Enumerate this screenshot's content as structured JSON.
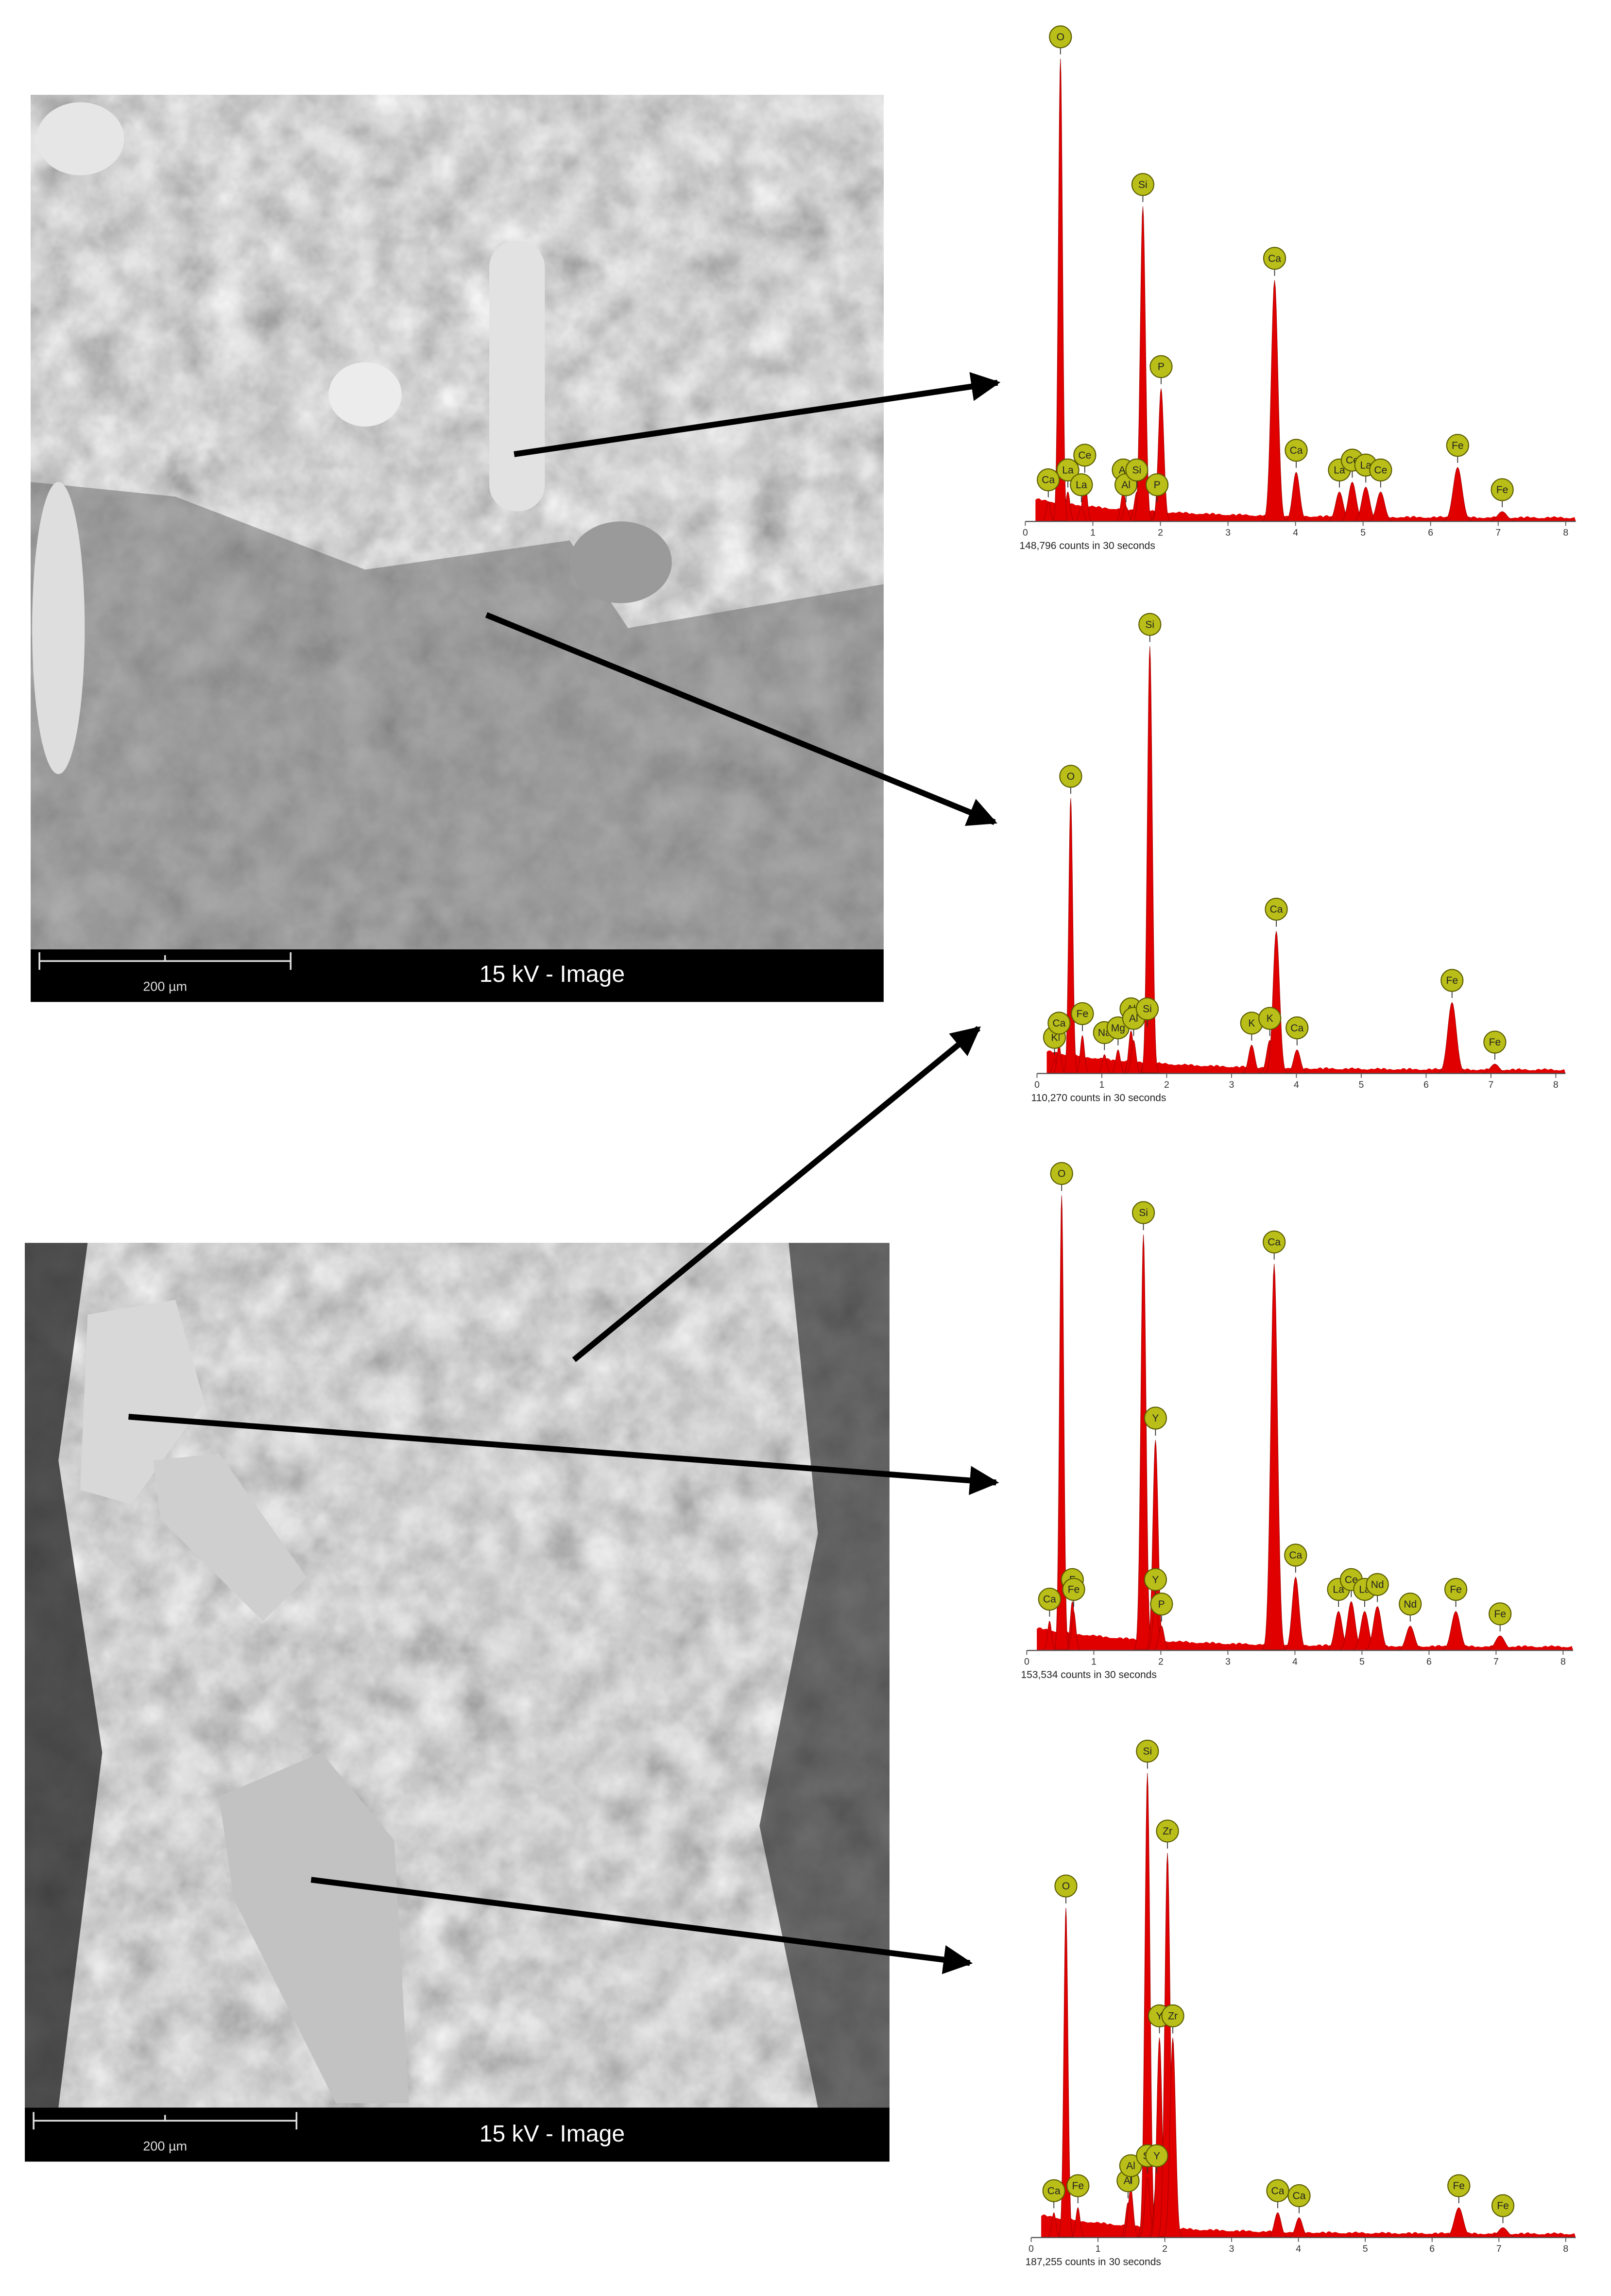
{
  "images": [
    {
      "label": "15 kV - Image",
      "scale": "200 µm"
    },
    {
      "label": "15 kV - Image",
      "scale": "200 µm"
    }
  ],
  "chart_data": [
    {
      "type": "spectrum",
      "caption": "148,796 counts in 30 seconds",
      "color": "#e00000",
      "xlim": [
        0,
        8.15
      ],
      "xticks": [
        0,
        1,
        2,
        3,
        4,
        5,
        6,
        7,
        8
      ],
      "ylim": [
        0,
        100
      ],
      "labels": [
        "Ca",
        "La",
        "Ce",
        "La",
        "O",
        "Al",
        "Al",
        "Si",
        "Si",
        "P",
        "P",
        "Ca",
        "Ca",
        "La",
        "Ce",
        "La",
        "Ce",
        "Fe",
        "Fe"
      ],
      "x": [
        0.34,
        0.63,
        0.88,
        0.83,
        0.52,
        1.45,
        1.49,
        1.65,
        1.74,
        1.95,
        2.01,
        3.69,
        4.01,
        4.65,
        4.84,
        5.04,
        5.26,
        6.4,
        7.06
      ],
      "values": [
        4,
        6,
        9,
        3,
        94,
        6,
        3,
        6,
        64,
        3,
        27,
        49,
        10,
        6,
        8,
        7,
        6,
        11,
        2
      ]
    },
    {
      "type": "spectrum",
      "caption": "110,270 counts in 30 seconds",
      "color": "#e00000",
      "xlim": [
        0,
        8.15
      ],
      "xticks": [
        0,
        1,
        2,
        3,
        4,
        5,
        6,
        7,
        8
      ],
      "ylim": [
        0,
        100
      ],
      "labels": [
        "K",
        "Ca",
        "Fe",
        "O",
        "Na",
        "Mg",
        "Al",
        "Al",
        "Si",
        "Si",
        "K",
        "K",
        "Ca",
        "Ca",
        "Fe",
        "Fe"
      ],
      "x": [
        0.27,
        0.34,
        0.7,
        0.52,
        1.04,
        1.25,
        1.45,
        1.49,
        1.7,
        1.74,
        3.31,
        3.59,
        3.69,
        4.01,
        6.4,
        7.06
      ],
      "values": [
        3,
        6,
        8,
        58,
        4,
        5,
        9,
        7,
        9,
        90,
        6,
        7,
        30,
        5,
        15,
        2
      ]
    },
    {
      "type": "spectrum",
      "caption": "153,534 counts in 30 seconds",
      "color": "#e00000",
      "xlim": [
        0,
        8.15
      ],
      "xticks": [
        0,
        1,
        2,
        3,
        4,
        5,
        6,
        7,
        8
      ],
      "ylim": [
        0,
        100
      ],
      "labels": [
        "Ca",
        "F",
        "Fe",
        "O",
        "Si",
        "Y",
        "Y",
        "P",
        "Ca",
        "Ca",
        "La",
        "Ce",
        "La",
        "Nd",
        "Nd",
        "Fe",
        "Fe"
      ],
      "x": [
        0.34,
        0.68,
        0.7,
        0.52,
        1.74,
        1.92,
        1.92,
        2.01,
        3.69,
        4.01,
        4.65,
        4.84,
        5.04,
        5.23,
        5.72,
        6.4,
        7.06
      ],
      "values": [
        6,
        10,
        8,
        93,
        85,
        43,
        10,
        5,
        79,
        15,
        8,
        10,
        8,
        9,
        5,
        8,
        3
      ]
    },
    {
      "type": "spectrum",
      "caption": "187,255 counts in 30 seconds",
      "color": "#e00000",
      "xlim": [
        0,
        8.15
      ],
      "xticks": [
        0,
        1,
        2,
        3,
        4,
        5,
        6,
        7,
        8
      ],
      "ylim": [
        0,
        100
      ],
      "labels": [
        "Ca",
        "Fe",
        "O",
        "Al",
        "Al",
        "Si",
        "Si",
        "Y",
        "Y",
        "Zr",
        "Zr",
        "Ca",
        "Ca",
        "Fe",
        "Fe"
      ],
      "x": [
        0.34,
        0.7,
        0.52,
        1.45,
        1.49,
        1.74,
        1.74,
        1.88,
        1.92,
        2.04,
        2.12,
        3.69,
        4.01,
        6.4,
        7.06
      ],
      "values": [
        5,
        6,
        66,
        7,
        10,
        93,
        12,
        12,
        40,
        77,
        40,
        5,
        4,
        6,
        2
      ]
    }
  ]
}
